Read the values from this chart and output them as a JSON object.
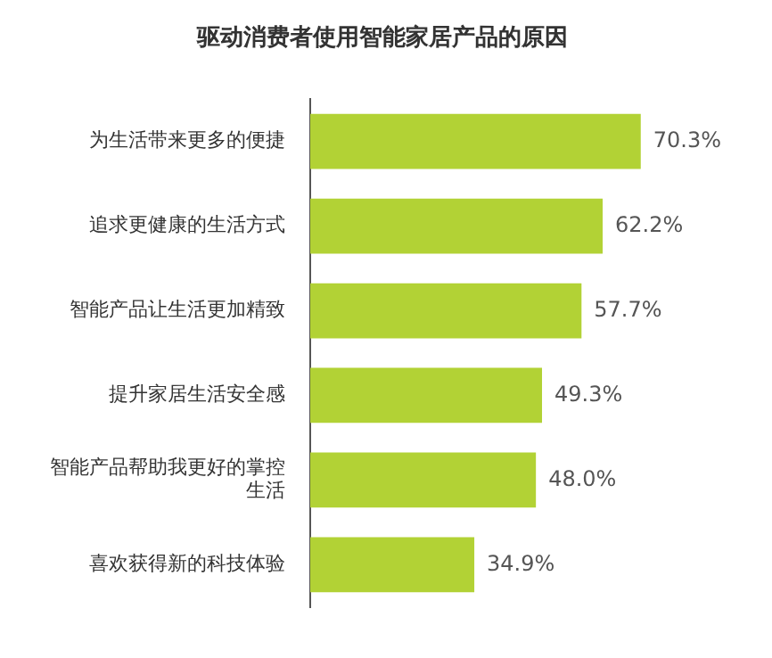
{
  "chart_data": {
    "type": "bar",
    "orientation": "horizontal",
    "title": "驱动消费者使用智能家居产品的原因",
    "categories": [
      "为生活带来更多的便捷",
      "追求更健康的生活方式",
      "智能产品让生活更加精致",
      "提升家居生活安全感",
      "智能产品帮助我更好的掌控生活",
      "喜欢获得新的科技体验"
    ],
    "values": [
      70.3,
      62.2,
      57.7,
      49.3,
      48.0,
      34.9
    ],
    "value_labels": [
      "70.3%",
      "62.2%",
      "57.7%",
      "49.3%",
      "48.0%",
      "34.9%"
    ],
    "color": "#b2d235"
  }
}
